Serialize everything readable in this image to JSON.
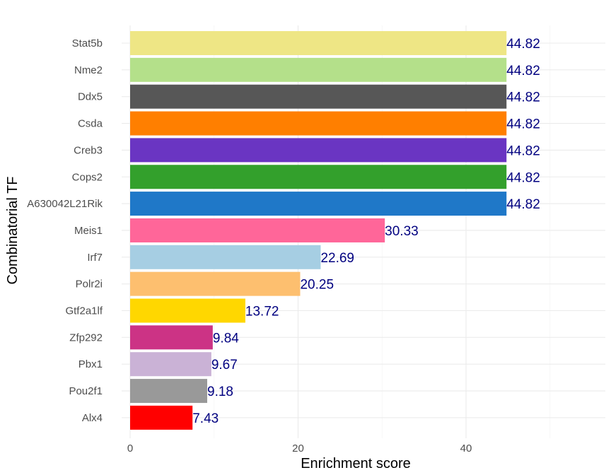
{
  "chart_data": {
    "type": "bar",
    "orientation": "horizontal",
    "xlabel": "Enrichment score",
    "ylabel": "Combinatorial TF",
    "xlim": [
      0,
      56
    ],
    "xticks": [
      0,
      20,
      40
    ],
    "grid": true,
    "categories": [
      "Stat5b",
      "Nme2",
      "Ddx5",
      "Csda",
      "Creb3",
      "Cops2",
      "A630042L21Rik",
      "Meis1",
      "Irf7",
      "Polr2i",
      "Gtf2a1lf",
      "Zfp292",
      "Pbx1",
      "Pou2f1",
      "Alx4"
    ],
    "values": [
      44.82,
      44.82,
      44.82,
      44.82,
      44.82,
      44.82,
      44.82,
      30.33,
      22.69,
      20.25,
      13.72,
      9.84,
      9.67,
      9.18,
      7.43
    ],
    "value_labels": [
      "44.82",
      "44.82",
      "44.82",
      "44.82",
      "44.82",
      "44.82",
      "44.82",
      "30.33",
      "22.69",
      "20.25",
      "13.72",
      "9.84",
      "9.67",
      "9.18",
      "7.43"
    ],
    "colors": [
      "#EEE685",
      "#B4E08A",
      "#575757",
      "#FF7F00",
      "#6A35C2",
      "#33A02C",
      "#1F78C8",
      "#FF6699",
      "#A6CEE3",
      "#FDBF6F",
      "#FFD700",
      "#CC3385",
      "#CAB2D6",
      "#999999",
      "#FF0000"
    ],
    "label_color": "#000080"
  }
}
